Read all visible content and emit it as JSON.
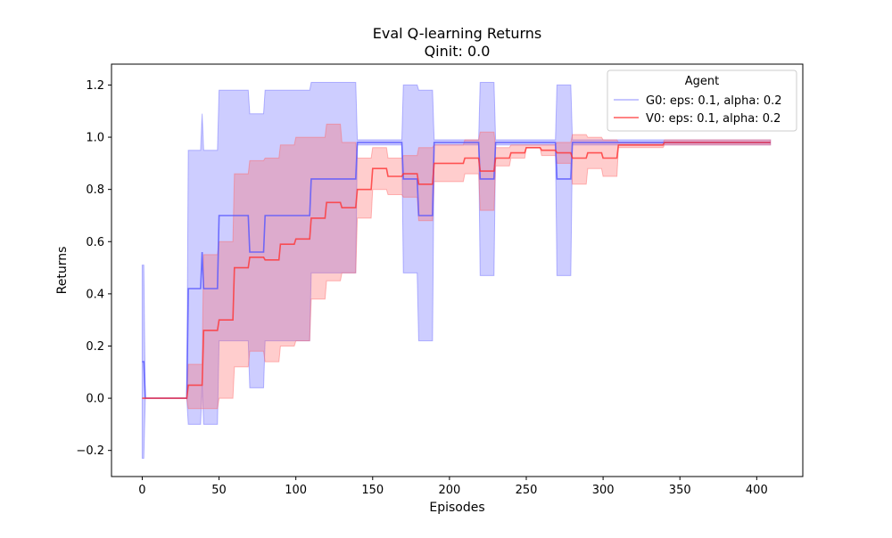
{
  "chart_data": {
    "type": "line",
    "title": "Eval Q-learning Returns",
    "subtitle": "Qinit: 0.0",
    "xlabel": "Episodes",
    "ylabel": "Returns",
    "xlim": [
      -20,
      430
    ],
    "ylim": [
      -0.3,
      1.28
    ],
    "xticks": [
      0,
      50,
      100,
      150,
      200,
      250,
      300,
      350,
      400
    ],
    "yticks": [
      -0.2,
      0.0,
      0.2,
      0.4,
      0.6,
      0.8,
      1.0,
      1.2
    ],
    "grid": false,
    "legend": {
      "title": "Agent",
      "position": "top-right"
    },
    "series": [
      {
        "name": "G0: eps: 0.1, alpha: 0.2",
        "color": "#5555ff",
        "band_color": "#6666ff",
        "x": [
          0,
          1,
          2,
          29,
          30,
          38,
          39,
          40,
          49,
          50,
          59,
          60,
          69,
          70,
          79,
          80,
          89,
          90,
          99,
          100,
          109,
          110,
          119,
          120,
          129,
          130,
          139,
          140,
          149,
          150,
          159,
          160,
          169,
          170,
          179,
          180,
          189,
          190,
          199,
          200,
          219,
          220,
          229,
          230,
          269,
          270,
          279,
          280,
          409
        ],
        "y": [
          0.14,
          0.14,
          0.0,
          0.0,
          0.42,
          0.42,
          0.56,
          0.42,
          0.42,
          0.7,
          0.7,
          0.7,
          0.7,
          0.56,
          0.56,
          0.7,
          0.7,
          0.7,
          0.7,
          0.7,
          0.7,
          0.84,
          0.84,
          0.84,
          0.84,
          0.84,
          0.84,
          0.98,
          0.98,
          0.98,
          0.98,
          0.98,
          0.98,
          0.84,
          0.84,
          0.7,
          0.7,
          0.98,
          0.98,
          0.98,
          0.98,
          0.84,
          0.84,
          0.98,
          0.98,
          0.84,
          0.84,
          0.98,
          0.98
        ],
        "lower": [
          -0.23,
          -0.23,
          0.0,
          0.0,
          -0.1,
          -0.1,
          0.05,
          -0.1,
          -0.1,
          0.22,
          0.22,
          0.22,
          0.22,
          0.04,
          0.04,
          0.22,
          0.22,
          0.22,
          0.22,
          0.22,
          0.22,
          0.48,
          0.48,
          0.48,
          0.48,
          0.48,
          0.48,
          0.97,
          0.97,
          0.97,
          0.97,
          0.97,
          0.97,
          0.48,
          0.48,
          0.22,
          0.22,
          0.97,
          0.97,
          0.97,
          0.97,
          0.47,
          0.47,
          0.97,
          0.97,
          0.47,
          0.47,
          0.97,
          0.97
        ],
        "upper": [
          0.51,
          0.51,
          0.0,
          0.0,
          0.95,
          0.95,
          1.09,
          0.95,
          0.95,
          1.18,
          1.18,
          1.18,
          1.18,
          1.09,
          1.09,
          1.18,
          1.18,
          1.18,
          1.18,
          1.18,
          1.18,
          1.21,
          1.21,
          1.21,
          1.21,
          1.21,
          1.21,
          0.99,
          0.99,
          0.99,
          0.99,
          0.99,
          0.99,
          1.2,
          1.2,
          1.18,
          1.18,
          0.99,
          0.99,
          0.99,
          0.99,
          1.21,
          1.21,
          0.99,
          0.99,
          1.2,
          1.2,
          0.99,
          0.99
        ]
      },
      {
        "name": "V0: eps: 0.1, alpha: 0.2",
        "color": "#ff3333",
        "band_color": "#ff6666",
        "x": [
          0,
          29,
          30,
          39,
          40,
          49,
          50,
          59,
          60,
          69,
          70,
          79,
          80,
          89,
          90,
          99,
          100,
          109,
          110,
          119,
          120,
          129,
          130,
          139,
          140,
          149,
          150,
          159,
          160,
          169,
          170,
          179,
          180,
          189,
          190,
          209,
          210,
          219,
          220,
          229,
          230,
          239,
          240,
          249,
          250,
          259,
          260,
          269,
          270,
          279,
          280,
          289,
          290,
          299,
          300,
          309,
          310,
          339,
          340,
          409
        ],
        "y": [
          0.0,
          0.0,
          0.05,
          0.05,
          0.26,
          0.26,
          0.3,
          0.3,
          0.5,
          0.5,
          0.54,
          0.54,
          0.53,
          0.53,
          0.59,
          0.59,
          0.61,
          0.61,
          0.69,
          0.69,
          0.75,
          0.75,
          0.73,
          0.73,
          0.8,
          0.8,
          0.88,
          0.88,
          0.85,
          0.85,
          0.86,
          0.86,
          0.82,
          0.82,
          0.9,
          0.9,
          0.92,
          0.92,
          0.87,
          0.87,
          0.92,
          0.92,
          0.94,
          0.94,
          0.96,
          0.96,
          0.95,
          0.95,
          0.94,
          0.94,
          0.92,
          0.92,
          0.94,
          0.94,
          0.92,
          0.92,
          0.97,
          0.97,
          0.98,
          0.98
        ],
        "lower": [
          0.0,
          0.0,
          -0.04,
          -0.04,
          -0.04,
          -0.04,
          0.0,
          0.0,
          0.12,
          0.12,
          0.18,
          0.18,
          0.14,
          0.14,
          0.2,
          0.2,
          0.22,
          0.22,
          0.38,
          0.38,
          0.45,
          0.45,
          0.48,
          0.48,
          0.69,
          0.69,
          0.8,
          0.8,
          0.78,
          0.78,
          0.77,
          0.77,
          0.68,
          0.68,
          0.83,
          0.83,
          0.86,
          0.86,
          0.72,
          0.72,
          0.89,
          0.89,
          0.92,
          0.92,
          0.96,
          0.96,
          0.93,
          0.93,
          0.9,
          0.9,
          0.82,
          0.82,
          0.88,
          0.88,
          0.85,
          0.85,
          0.96,
          0.96,
          0.97,
          0.97
        ],
        "upper": [
          0.0,
          0.0,
          0.13,
          0.13,
          0.55,
          0.55,
          0.6,
          0.6,
          0.86,
          0.86,
          0.91,
          0.91,
          0.92,
          0.92,
          0.97,
          0.97,
          1.0,
          1.0,
          1.0,
          1.0,
          1.05,
          1.05,
          0.98,
          0.98,
          0.92,
          0.92,
          0.96,
          0.96,
          0.92,
          0.92,
          0.93,
          0.93,
          0.96,
          0.96,
          0.97,
          0.97,
          0.99,
          0.99,
          1.02,
          1.02,
          0.96,
          0.96,
          0.97,
          0.97,
          0.97,
          0.97,
          0.97,
          0.97,
          0.98,
          0.98,
          1.01,
          1.01,
          1.0,
          1.0,
          0.99,
          0.99,
          0.98,
          0.98,
          0.99,
          0.99
        ]
      }
    ]
  }
}
